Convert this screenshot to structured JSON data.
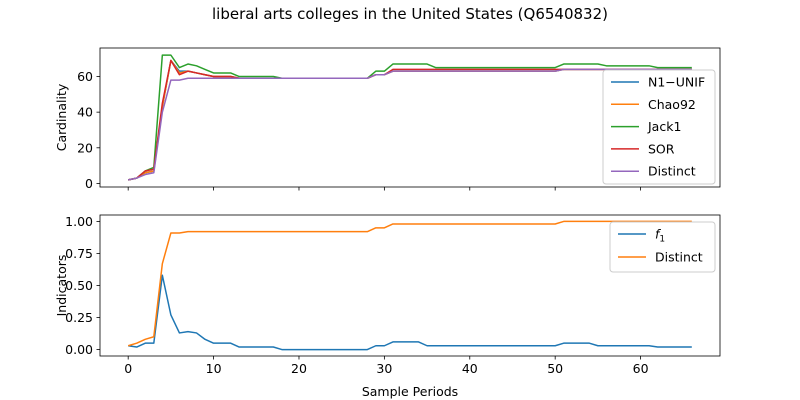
{
  "chart_data": [
    {
      "type": "line",
      "title": "liberal arts colleges in the United States (Q6540832)",
      "xlabel": "",
      "ylabel": "Cardinality",
      "xlim": [
        -3.3,
        69.3
      ],
      "ylim": [
        -2,
        76
      ],
      "xticks": [
        0,
        10,
        20,
        30,
        40,
        50,
        60
      ],
      "yticks": [
        0,
        20,
        40,
        60
      ],
      "legend_position": "lower-right",
      "x": [
        0,
        1,
        2,
        3,
        4,
        5,
        6,
        7,
        8,
        9,
        10,
        11,
        12,
        13,
        14,
        15,
        16,
        17,
        18,
        19,
        20,
        21,
        22,
        23,
        24,
        25,
        26,
        27,
        28,
        29,
        30,
        31,
        32,
        33,
        34,
        35,
        36,
        37,
        38,
        39,
        40,
        41,
        42,
        43,
        44,
        45,
        46,
        47,
        48,
        49,
        50,
        51,
        52,
        53,
        54,
        55,
        56,
        57,
        58,
        59,
        60,
        61,
        62,
        63,
        64,
        65,
        66
      ],
      "series": [
        {
          "name": "N1−UNIF",
          "color": "#1f77b4",
          "values": [
            2,
            3,
            6,
            7,
            43,
            69,
            63,
            63,
            62,
            61,
            60,
            60,
            60,
            59,
            59,
            59,
            59,
            59,
            59,
            59,
            59,
            59,
            59,
            59,
            59,
            59,
            59,
            59,
            59,
            61,
            61,
            63,
            63,
            63,
            63,
            63,
            63,
            63,
            63,
            63,
            63,
            63,
            63,
            63,
            63,
            63,
            63,
            63,
            63,
            63,
            63,
            64,
            64,
            64,
            64,
            64,
            64,
            64,
            64,
            64,
            64,
            64,
            64,
            64,
            64,
            64,
            64
          ]
        },
        {
          "name": "Chao92",
          "color": "#ff7f0e",
          "values": [
            2,
            3,
            6,
            7,
            43,
            69,
            62,
            63,
            62,
            61,
            60,
            60,
            60,
            59,
            59,
            59,
            59,
            59,
            59,
            59,
            59,
            59,
            59,
            59,
            59,
            59,
            59,
            59,
            59,
            61,
            61,
            63,
            63,
            63,
            63,
            63,
            63,
            63,
            63,
            63,
            63,
            63,
            63,
            63,
            63,
            63,
            63,
            63,
            63,
            63,
            63,
            64,
            64,
            64,
            64,
            64,
            64,
            64,
            64,
            64,
            64,
            64,
            64,
            64,
            64,
            64,
            64
          ]
        },
        {
          "name": "Jack1",
          "color": "#2ca02c",
          "values": [
            2,
            3,
            7,
            9,
            72,
            72,
            65,
            67,
            66,
            64,
            62,
            62,
            62,
            60,
            60,
            60,
            60,
            60,
            59,
            59,
            59,
            59,
            59,
            59,
            59,
            59,
            59,
            59,
            59,
            63,
            63,
            67,
            67,
            67,
            67,
            67,
            65,
            65,
            65,
            65,
            65,
            65,
            65,
            65,
            65,
            65,
            65,
            65,
            65,
            65,
            65,
            67,
            67,
            67,
            67,
            67,
            66,
            66,
            66,
            66,
            66,
            66,
            65,
            65,
            65,
            65,
            65
          ]
        },
        {
          "name": "SOR",
          "color": "#d62728",
          "values": [
            2,
            3,
            7,
            8,
            45,
            69,
            61,
            63,
            62,
            61,
            60,
            60,
            60,
            59,
            59,
            59,
            59,
            59,
            59,
            59,
            59,
            59,
            59,
            59,
            59,
            59,
            59,
            59,
            59,
            61,
            61,
            64,
            64,
            64,
            64,
            64,
            64,
            64,
            64,
            64,
            64,
            64,
            64,
            64,
            64,
            64,
            64,
            64,
            64,
            64,
            64,
            64,
            64,
            64,
            64,
            64,
            64,
            64,
            64,
            64,
            64,
            64,
            64,
            64,
            64,
            64,
            64
          ]
        },
        {
          "name": "Distinct",
          "color": "#9467bd",
          "values": [
            2,
            3,
            5,
            6,
            40,
            58,
            58,
            59,
            59,
            59,
            59,
            59,
            59,
            59,
            59,
            59,
            59,
            59,
            59,
            59,
            59,
            59,
            59,
            59,
            59,
            59,
            59,
            59,
            59,
            61,
            61,
            63,
            63,
            63,
            63,
            63,
            63,
            63,
            63,
            63,
            63,
            63,
            63,
            63,
            63,
            63,
            63,
            63,
            63,
            63,
            63,
            64,
            64,
            64,
            64,
            64,
            64,
            64,
            64,
            64,
            64,
            64,
            64,
            64,
            64,
            64,
            64
          ]
        }
      ]
    },
    {
      "type": "line",
      "title": "",
      "xlabel": "Sample Periods",
      "ylabel": "Indicators",
      "xlim": [
        -3.3,
        69.3
      ],
      "ylim": [
        -0.05,
        1.05
      ],
      "xticks": [
        0,
        10,
        20,
        30,
        40,
        50,
        60
      ],
      "yticks": [
        "0.00",
        "0.25",
        "0.50",
        "0.75",
        "1.00"
      ],
      "legend_position": "upper-right",
      "x": [
        0,
        1,
        2,
        3,
        4,
        5,
        6,
        7,
        8,
        9,
        10,
        11,
        12,
        13,
        14,
        15,
        16,
        17,
        18,
        19,
        20,
        21,
        22,
        23,
        24,
        25,
        26,
        27,
        28,
        29,
        30,
        31,
        32,
        33,
        34,
        35,
        36,
        37,
        38,
        39,
        40,
        41,
        42,
        43,
        44,
        45,
        46,
        47,
        48,
        49,
        50,
        51,
        52,
        53,
        54,
        55,
        56,
        57,
        58,
        59,
        60,
        61,
        62,
        63,
        64,
        65,
        66
      ],
      "series": [
        {
          "name": "f₁",
          "name_base": "f",
          "name_sub": "1",
          "color": "#1f77b4",
          "values": [
            0.03,
            0.02,
            0.05,
            0.05,
            0.58,
            0.27,
            0.13,
            0.14,
            0.13,
            0.08,
            0.05,
            0.05,
            0.05,
            0.02,
            0.02,
            0.02,
            0.02,
            0.02,
            0.0,
            0.0,
            0.0,
            0.0,
            0.0,
            0.0,
            0.0,
            0.0,
            0.0,
            0.0,
            0.0,
            0.03,
            0.03,
            0.06,
            0.06,
            0.06,
            0.06,
            0.03,
            0.03,
            0.03,
            0.03,
            0.03,
            0.03,
            0.03,
            0.03,
            0.03,
            0.03,
            0.03,
            0.03,
            0.03,
            0.03,
            0.03,
            0.03,
            0.05,
            0.05,
            0.05,
            0.05,
            0.03,
            0.03,
            0.03,
            0.03,
            0.03,
            0.03,
            0.03,
            0.02,
            0.02,
            0.02,
            0.02,
            0.02
          ]
        },
        {
          "name": "Distinct",
          "color": "#ff7f0e",
          "values": [
            0.03,
            0.05,
            0.08,
            0.1,
            0.67,
            0.91,
            0.91,
            0.92,
            0.92,
            0.92,
            0.92,
            0.92,
            0.92,
            0.92,
            0.92,
            0.92,
            0.92,
            0.92,
            0.92,
            0.92,
            0.92,
            0.92,
            0.92,
            0.92,
            0.92,
            0.92,
            0.92,
            0.92,
            0.92,
            0.95,
            0.95,
            0.98,
            0.98,
            0.98,
            0.98,
            0.98,
            0.98,
            0.98,
            0.98,
            0.98,
            0.98,
            0.98,
            0.98,
            0.98,
            0.98,
            0.98,
            0.98,
            0.98,
            0.98,
            0.98,
            0.98,
            1.0,
            1.0,
            1.0,
            1.0,
            1.0,
            1.0,
            1.0,
            1.0,
            1.0,
            1.0,
            1.0,
            1.0,
            1.0,
            1.0,
            1.0,
            1.0
          ]
        }
      ]
    }
  ]
}
